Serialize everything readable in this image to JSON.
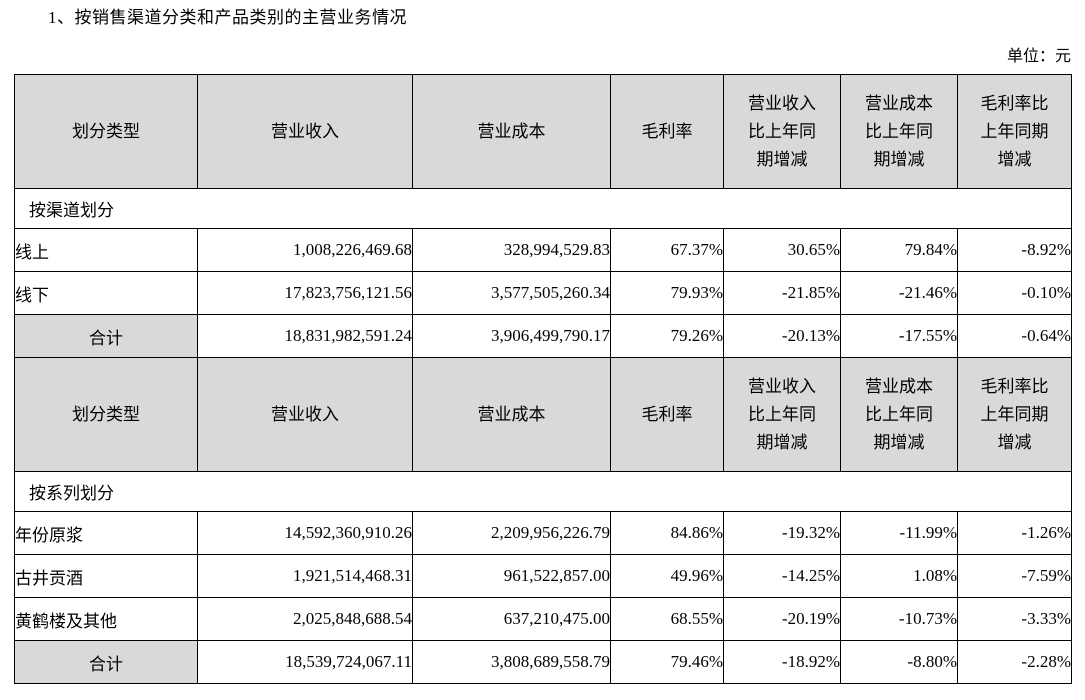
{
  "page": {
    "title": "1、按销售渠道分类和产品类别的主营业务情况",
    "unit_label": "单位：元"
  },
  "colors": {
    "header_background": "#d9d9d9",
    "total_cell_background": "#d9d9d9",
    "table_border": "#000000",
    "page_background": "#ffffff"
  },
  "table": {
    "columns": [
      "划分类型",
      "营业收入",
      "营业成本",
      "毛利率",
      "营业收入\n比上年同\n期增减",
      "营业成本\n比上年同\n期增减",
      "毛利率比\n上年同期\n增减"
    ],
    "sections": [
      {
        "label": "按渠道划分",
        "rows": [
          {
            "label": "线上",
            "revenue": "1,008,226,469.68",
            "cost": "328,994,529.83",
            "margin": "67.37%",
            "revenue_yoy": "30.65%",
            "cost_yoy": "79.84%",
            "margin_yoy": "-8.92%",
            "total": false
          },
          {
            "label": "线下",
            "revenue": "17,823,756,121.56",
            "cost": "3,577,505,260.34",
            "margin": "79.93%",
            "revenue_yoy": "-21.85%",
            "cost_yoy": "-21.46%",
            "margin_yoy": "-0.10%",
            "total": false
          },
          {
            "label": "合计",
            "revenue": "18,831,982,591.24",
            "cost": "3,906,499,790.17",
            "margin": "79.26%",
            "revenue_yoy": "-20.13%",
            "cost_yoy": "-17.55%",
            "margin_yoy": "-0.64%",
            "total": true
          }
        ]
      },
      {
        "label": "按系列划分",
        "rows": [
          {
            "label": "年份原浆",
            "revenue": "14,592,360,910.26",
            "cost": "2,209,956,226.79",
            "margin": "84.86%",
            "revenue_yoy": "-19.32%",
            "cost_yoy": "-11.99%",
            "margin_yoy": "-1.26%",
            "total": false
          },
          {
            "label": "古井贡酒",
            "revenue": "1,921,514,468.31",
            "cost": "961,522,857.00",
            "margin": "49.96%",
            "revenue_yoy": "-14.25%",
            "cost_yoy": "1.08%",
            "margin_yoy": "-7.59%",
            "total": false
          },
          {
            "label": "黄鹤楼及其他",
            "revenue": "2,025,848,688.54",
            "cost": "637,210,475.00",
            "margin": "68.55%",
            "revenue_yoy": "-20.19%",
            "cost_yoy": "-10.73%",
            "margin_yoy": "-3.33%",
            "total": false
          },
          {
            "label": "合计",
            "revenue": "18,539,724,067.11",
            "cost": "3,808,689,558.79",
            "margin": "79.46%",
            "revenue_yoy": "-18.92%",
            "cost_yoy": "-8.80%",
            "margin_yoy": "-2.28%",
            "total": true
          }
        ]
      }
    ]
  }
}
